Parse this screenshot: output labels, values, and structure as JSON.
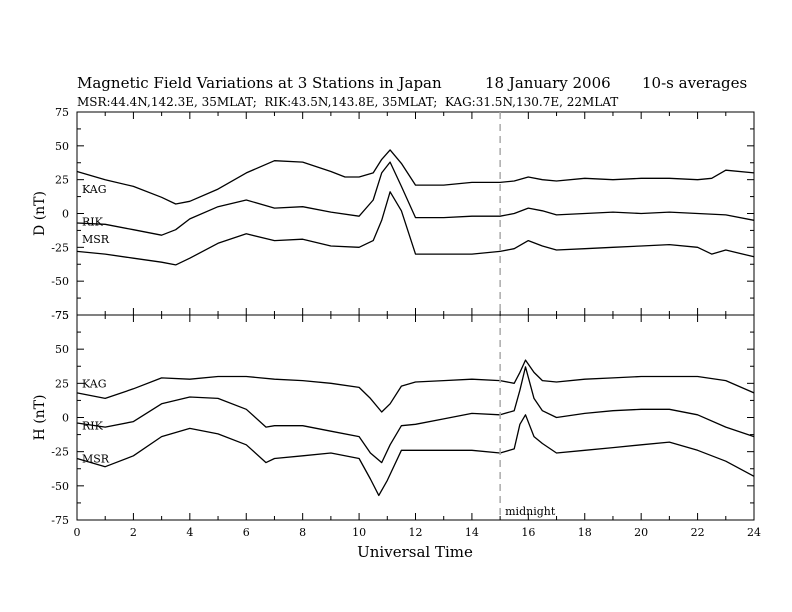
{
  "header": {
    "title_left": "Magnetic Field Variations at 3 Stations in Japan",
    "title_date": "18 January 2006",
    "title_avg": "10-s averages",
    "subtitle": "MSR:44.4N,142.3E, 35MLAT;  RIK:43.5N,143.8E, 35MLAT;  KAG:31.5N,130.7E, 22MLAT"
  },
  "chart_data": {
    "type": "line",
    "xlabel": "Universal Time",
    "xlim": [
      0,
      24
    ],
    "xticks": [
      0,
      2,
      4,
      6,
      8,
      10,
      12,
      14,
      16,
      18,
      20,
      22,
      24
    ],
    "grid": false,
    "marker": {
      "x": 15,
      "label": "midnight",
      "style": "dashed",
      "color": "#aaaaaa"
    },
    "panels": [
      {
        "id": "D",
        "ylabel": "D (nT)",
        "ylim": [
          -75,
          75
        ],
        "yticks": [
          75,
          50,
          25,
          0,
          -25,
          -50,
          -75
        ],
        "series": [
          {
            "name": "KAG",
            "label_y": 18,
            "x": [
              0,
              1,
              2,
              3,
              3.5,
              4,
              5,
              6,
              7,
              8,
              9,
              9.5,
              10,
              10.5,
              10.8,
              11.1,
              11.5,
              12,
              13,
              14,
              15,
              15.5,
              16,
              16.5,
              17,
              18,
              19,
              20,
              21,
              22,
              22.5,
              23,
              24
            ],
            "values": [
              31,
              25,
              20,
              12,
              7,
              9,
              18,
              30,
              39,
              38,
              31,
              27,
              27,
              30,
              40,
              47,
              37,
              21,
              21,
              23,
              23,
              24,
              27,
              25,
              24,
              26,
              25,
              26,
              26,
              25,
              26,
              32,
              30
            ]
          },
          {
            "name": "RIK",
            "label_y": -6,
            "x": [
              0,
              1,
              2,
              3,
              3.5,
              4,
              5,
              6,
              7,
              8,
              9,
              10,
              10.5,
              10.8,
              11.1,
              11.5,
              12,
              13,
              14,
              15,
              15.5,
              16,
              16.5,
              17,
              18,
              19,
              20,
              21,
              22,
              23,
              24
            ],
            "values": [
              -7,
              -8,
              -12,
              -16,
              -12,
              -4,
              5,
              10,
              4,
              5,
              1,
              -2,
              10,
              30,
              38,
              20,
              -3,
              -3,
              -2,
              -2,
              0,
              4,
              2,
              -1,
              0,
              1,
              0,
              1,
              0,
              -1,
              -5
            ]
          },
          {
            "name": "MSR",
            "label_y": -19,
            "x": [
              0,
              1,
              2,
              3,
              3.5,
              4,
              5,
              6,
              7,
              8,
              9,
              10,
              10.5,
              10.8,
              11.1,
              11.5,
              12,
              13,
              14,
              15,
              15.5,
              16,
              16.5,
              17,
              18,
              19,
              20,
              21,
              22,
              22.5,
              23,
              24
            ],
            "values": [
              -28,
              -30,
              -33,
              -36,
              -38,
              -33,
              -22,
              -15,
              -20,
              -19,
              -24,
              -25,
              -20,
              -5,
              16,
              2,
              -30,
              -30,
              -30,
              -28,
              -26,
              -20,
              -24,
              -27,
              -26,
              -25,
              -24,
              -23,
              -25,
              -30,
              -27,
              -32
            ]
          }
        ]
      },
      {
        "id": "H",
        "ylabel": "H (nT)",
        "ylim": [
          -75,
          75
        ],
        "yticks": [
          75,
          50,
          25,
          0,
          -25,
          -50,
          -75
        ],
        "series": [
          {
            "name": "KAG",
            "label_y": 25,
            "x": [
              0,
              1,
              2,
              3,
              4,
              5,
              6,
              7,
              8,
              9,
              10,
              10.4,
              10.8,
              11.1,
              11.5,
              12,
              13,
              14,
              15,
              15.5,
              15.7,
              15.9,
              16.2,
              16.5,
              17,
              18,
              19,
              20,
              21,
              22,
              23,
              24
            ],
            "values": [
              18,
              14,
              21,
              29,
              28,
              30,
              30,
              28,
              27,
              25,
              22,
              14,
              4,
              10,
              23,
              26,
              27,
              28,
              27,
              25,
              33,
              42,
              33,
              27,
              26,
              28,
              29,
              30,
              30,
              30,
              27,
              18
            ]
          },
          {
            "name": "RIK",
            "label_y": -6,
            "x": [
              0,
              1,
              2,
              3,
              4,
              5,
              6,
              6.7,
              7,
              8,
              9,
              10,
              10.4,
              10.8,
              11.1,
              11.5,
              12,
              13,
              14,
              15,
              15.5,
              15.7,
              15.9,
              16.2,
              16.5,
              17,
              18,
              19,
              20,
              21,
              22,
              23,
              24
            ],
            "values": [
              -4,
              -7,
              -3,
              10,
              15,
              14,
              6,
              -7,
              -6,
              -6,
              -10,
              -14,
              -26,
              -33,
              -20,
              -6,
              -5,
              -1,
              3,
              2,
              5,
              20,
              37,
              14,
              5,
              0,
              3,
              5,
              6,
              6,
              2,
              -7,
              -14
            ]
          },
          {
            "name": "MSR",
            "label_y": -30,
            "x": [
              0,
              1,
              2,
              3,
              4,
              5,
              6,
              6.7,
              7,
              8,
              9,
              10,
              10.4,
              10.7,
              11,
              11.5,
              12,
              13,
              14,
              15,
              15.5,
              15.7,
              15.9,
              16.2,
              16.5,
              17,
              18,
              19,
              20,
              21,
              22,
              23,
              24
            ],
            "values": [
              -30,
              -36,
              -28,
              -14,
              -8,
              -12,
              -20,
              -33,
              -30,
              -28,
              -26,
              -30,
              -45,
              -57,
              -46,
              -24,
              -24,
              -24,
              -24,
              -26,
              -23,
              -5,
              2,
              -14,
              -19,
              -26,
              -24,
              -22,
              -20,
              -18,
              -24,
              -32,
              -43
            ]
          }
        ]
      }
    ]
  }
}
